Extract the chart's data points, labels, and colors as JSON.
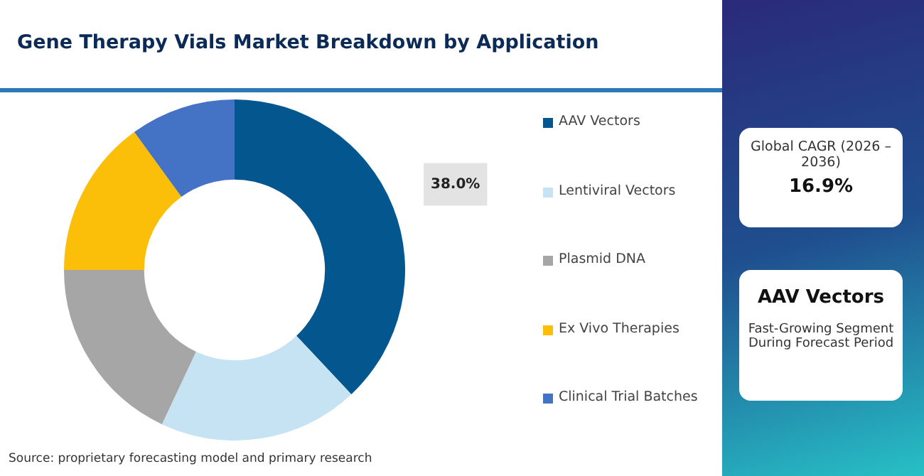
{
  "chart_data": {
    "type": "donut",
    "title": "Gene Therapy Vials Market Breakdown by Application",
    "categories": [
      "AAV Vectors",
      "Lentiviral Vectors",
      "Plasmid DNA",
      "Ex Vivo Therapies",
      "Clinical Trial Batches"
    ],
    "values": [
      38,
      19,
      18,
      15,
      10
    ],
    "colors": [
      "#04568f",
      "#c5e3f3",
      "#a6a6a6",
      "#fbbf0a",
      "#4472c4"
    ],
    "value_labels": [
      "38.0%",
      null,
      null,
      null,
      null
    ],
    "legend": "right",
    "annotations": [
      "Source: proprietary forecasting model and primary research",
      "Global CAGR (2026 – 2036)",
      "16.9%",
      "AAV Vectors",
      "Fast-Growing Segment During Forecast Period"
    ]
  }
}
